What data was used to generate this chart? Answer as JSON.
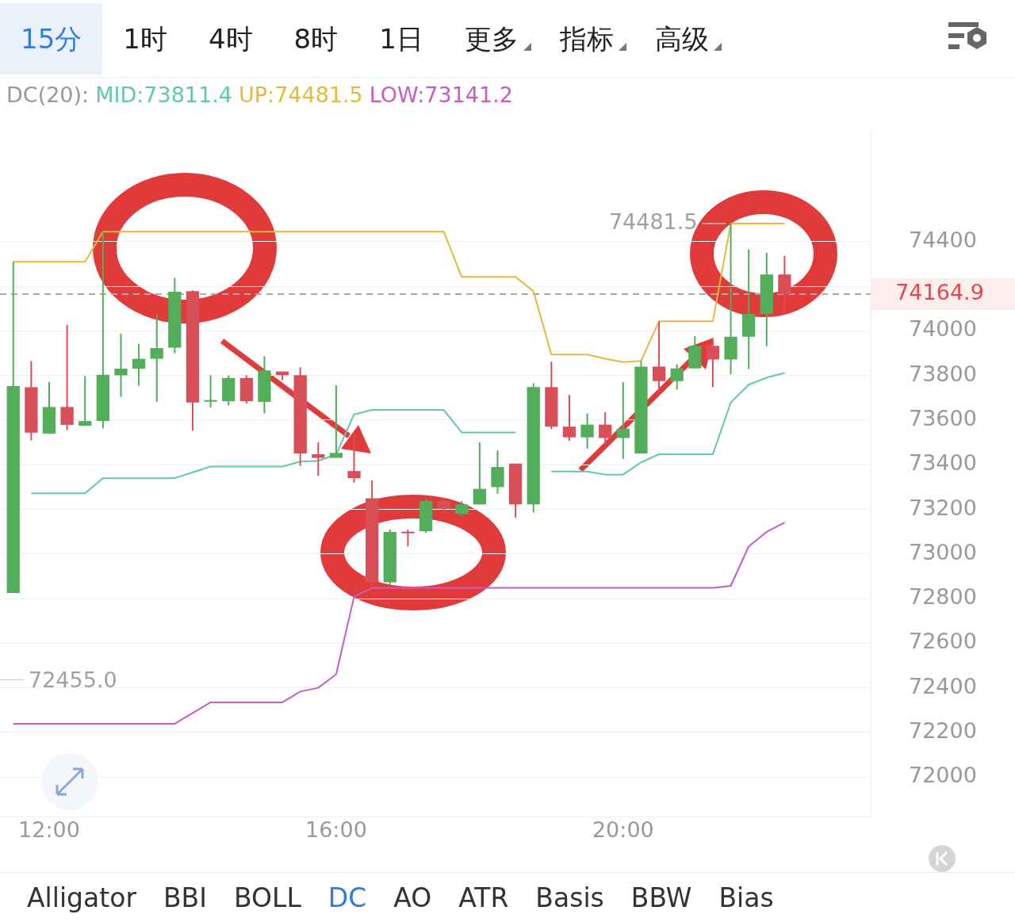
{
  "chart_data": {
    "type": "candlestick",
    "legend_title": "DC(20):",
    "legend": "top",
    "grid": "y",
    "marker": "none",
    "xlim": [
      11.315,
      23.45
    ],
    "ylim": [
      71820,
      74900
    ],
    "xticks": [
      {
        "value": 12,
        "label": "12:00"
      },
      {
        "value": 16,
        "label": "16:00"
      },
      {
        "value": 20,
        "label": "20:00"
      }
    ],
    "yticks": [
      72000,
      72200,
      72400,
      72600,
      72800,
      73000,
      73200,
      73400,
      73600,
      73800,
      74000,
      {
        "value": 74200,
        "label": null
      },
      74400
    ],
    "x": [
      11.5,
      11.75,
      12,
      12.25,
      12.5,
      12.75,
      13,
      13.25,
      13.5,
      13.75,
      14,
      14.25,
      14.5,
      14.75,
      15,
      15.25,
      15.5,
      15.75,
      16,
      16.25,
      16.5,
      16.75,
      17,
      17.25,
      17.5,
      17.75,
      18,
      18.25,
      18.5,
      18.75,
      19,
      19.25,
      19.5,
      19.75,
      20,
      20.25,
      20.5,
      20.75,
      21,
      21.25,
      21.5,
      21.75,
      22,
      22.25
    ],
    "ohlc": [
      [
        72825,
        74310,
        72825,
        73753
      ],
      [
        73747,
        73865,
        73509,
        73544
      ],
      [
        73540,
        73771,
        73540,
        73659
      ],
      [
        73659,
        74027,
        73556,
        73579
      ],
      [
        73575,
        73798,
        73575,
        73596
      ],
      [
        73596,
        74445,
        73563,
        73803
      ],
      [
        73801,
        73988,
        73705,
        73831
      ],
      [
        73831,
        73941,
        73756,
        73875
      ],
      [
        73875,
        74073,
        73682,
        73923
      ],
      [
        73925,
        74238,
        73900,
        74176
      ],
      [
        74178,
        74182,
        73553,
        73679
      ],
      [
        73685,
        73801,
        73656,
        73690
      ],
      [
        73685,
        73800,
        73666,
        73789
      ],
      [
        73789,
        73801,
        73675,
        73685
      ],
      [
        73682,
        73886,
        73630,
        73823
      ],
      [
        73818,
        73818,
        73780,
        73802
      ],
      [
        73802,
        73837,
        73395,
        73451
      ],
      [
        73447,
        73501,
        73351,
        73431
      ],
      [
        73431,
        73756,
        73431,
        73453
      ],
      [
        73372,
        73539,
        73320,
        73340
      ],
      [
        73250,
        73330,
        72860,
        72873
      ],
      [
        72873,
        73110,
        72860,
        73099
      ],
      [
        73100,
        73109,
        73034,
        73095
      ],
      [
        73102,
        73243,
        73095,
        73237
      ],
      [
        73237,
        73243,
        73180,
        73202
      ],
      [
        73179,
        73238,
        73170,
        73222
      ],
      [
        73222,
        73501,
        73222,
        73292
      ],
      [
        73300,
        73464,
        73270,
        73390
      ],
      [
        73405,
        73405,
        73163,
        73222
      ],
      [
        73222,
        73766,
        73186,
        73748
      ],
      [
        73748,
        73862,
        73560,
        73571
      ],
      [
        73571,
        73713,
        73508,
        73523
      ],
      [
        73523,
        73630,
        73472,
        73580
      ],
      [
        73580,
        73636,
        73491,
        73520
      ],
      [
        73520,
        73770,
        73426,
        73562
      ],
      [
        73451,
        73866,
        73451,
        73840
      ],
      [
        73840,
        74043,
        73727,
        73775
      ],
      [
        73775,
        73850,
        73737,
        73832
      ],
      [
        73832,
        73977,
        73832,
        73933
      ],
      [
        73933,
        73960,
        73748,
        73872
      ],
      [
        73872,
        74481.5,
        73805,
        73974
      ],
      [
        73974,
        74366,
        73829,
        74076
      ],
      [
        74076,
        74350,
        73931,
        74253
      ],
      [
        74253,
        74336,
        74081,
        74164.9
      ]
    ],
    "colors": [
      "#52ae5a",
      "#d94f58",
      "#52ae5a",
      "#d94f58",
      "#52ae5a",
      "#52ae5a",
      "#52ae5a",
      "#52ae5a",
      "#52ae5a",
      "#52ae5a",
      "#d94f58",
      "#52ae5a",
      "#52ae5a",
      "#d94f58",
      "#52ae5a",
      "#d94f58",
      "#d94f58",
      "#d94f58",
      "#52ae5a",
      "#d94f58",
      "#d94f58",
      "#52ae5a",
      "#d94f58",
      "#52ae5a",
      "#d94f58",
      "#52ae5a",
      "#52ae5a",
      "#52ae5a",
      "#d94f58",
      "#52ae5a",
      "#d94f58",
      "#d94f58",
      "#52ae5a",
      "#d94f58",
      "#52ae5a",
      "#52ae5a",
      "#d94f58",
      "#52ae5a",
      "#52ae5a",
      "#d94f58",
      "#52ae5a",
      "#52ae5a",
      "#52ae5a",
      "#d94f58"
    ],
    "series": [
      {
        "name": "MID:73811.4",
        "type": "line",
        "color": "#62c9a8",
        "values": [
          null,
          73272,
          73272,
          73272,
          73272,
          73340,
          73340,
          73340,
          73340,
          73340,
          73366,
          73392,
          73392,
          73392,
          73392,
          73392,
          73414,
          73418,
          73446,
          73626,
          73646,
          73646,
          73646,
          73646,
          73646,
          73545,
          73545,
          73545,
          73545,
          null,
          73370,
          73370,
          73370,
          73356,
          73356,
          73411,
          73447,
          73447,
          73447,
          73447,
          73679,
          73759,
          73791,
          73811.4
        ]
      },
      {
        "name": "UP:74481.5",
        "type": "line",
        "color": "#e6b83c",
        "values": [
          74310,
          74310,
          74310,
          74310,
          74310,
          74445,
          74445,
          74445,
          74445,
          74445,
          74445,
          74445,
          74445,
          74445,
          74445,
          74445,
          74445,
          74445,
          74445,
          74445,
          74445,
          74445,
          74445,
          74445,
          74445,
          74242,
          74242,
          74242,
          74242,
          74178,
          73894,
          73894,
          73894,
          73875,
          73860,
          73866,
          74043,
          74043,
          74043,
          74043,
          74481.5,
          74481.5,
          74481.5,
          74481.5
        ]
      },
      {
        "name": "LOW:73141.2",
        "type": "line",
        "color": "#c85cc0",
        "values": [
          72239,
          72239,
          72239,
          72239,
          72239,
          72239,
          72239,
          72239,
          72239,
          72239,
          72287,
          72335,
          72335,
          72335,
          72335,
          72335,
          72383,
          72400,
          72461,
          72809,
          72848,
          72848,
          72848,
          72848,
          72848,
          72848,
          72848,
          72848,
          72848,
          72848,
          72848,
          72848,
          72848,
          72848,
          72848,
          72848,
          72848,
          72848,
          72848,
          72848,
          72857,
          73034,
          73099,
          73141.2
        ]
      }
    ],
    "ref_lines": [
      {
        "axis": "y",
        "value": 74164.9,
        "label": "74164.9",
        "color": "#aaaaaa",
        "line_style": "dashed"
      }
    ],
    "annotations": [
      {
        "text": "74481.5",
        "x": 21.5,
        "y": 74481.5
      },
      "15分",
      "1时",
      "4时",
      "8时",
      "1日",
      "更多",
      "指标",
      "高级",
      "Alligator",
      "BBI",
      "BOLL",
      "DC",
      "AO",
      "ATR",
      "Basis",
      "BBW",
      "Bias",
      "72455.0"
    ]
  }
}
